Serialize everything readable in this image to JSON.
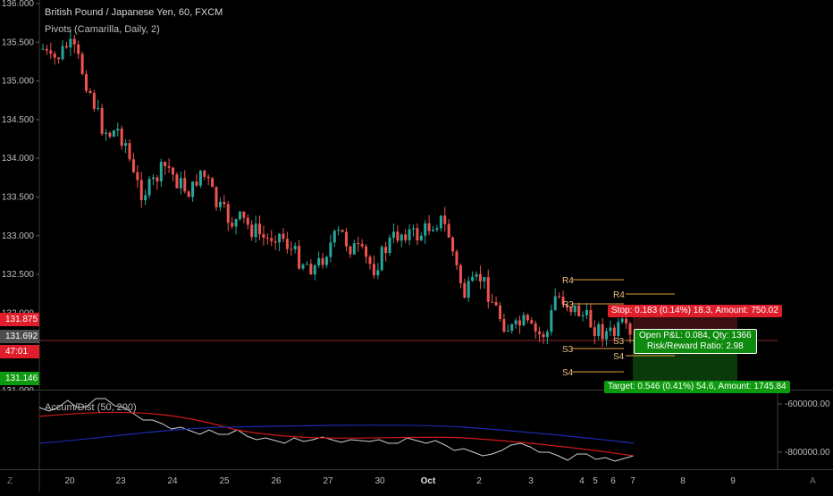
{
  "header": {
    "title": "British Pound / Japanese Yen, 60, FXCM",
    "subtitle": "Pivots (Camarilla, Daily, 2)"
  },
  "indicator": {
    "title": "Accum/Dist (50, 200)",
    "axis_labels": [
      "-600000.00",
      "-800000.00"
    ]
  },
  "price_axis": {
    "labels": [
      "136.000",
      "135.500",
      "135.000",
      "134.500",
      "134.000",
      "133.500",
      "133.000",
      "132.500",
      "132.000",
      "131.500",
      "131.000"
    ],
    "stop_price": "131.875",
    "current_price": "131.692",
    "countdown": "47:01",
    "target_price": "131.146",
    "colors": {
      "stop": "#e01e2b",
      "current": "#4d4d4d",
      "countdown": "#e01e2b",
      "target": "#0e9a0e"
    }
  },
  "date_axis": {
    "labels": [
      "20",
      "23",
      "24",
      "25",
      "26",
      "27",
      "30",
      "Oct",
      "2",
      "3",
      "4",
      "5",
      "6",
      "7",
      "8",
      "9"
    ]
  },
  "pivots": {
    "day1": [
      "R4",
      "R3",
      "S3",
      "S4"
    ],
    "day2": [
      "R4",
      "R3",
      "S3",
      "S4"
    ]
  },
  "position": {
    "stop_text": "Stop: 0.183 (0.14%) 18.3, Amount: 750.02",
    "pnl_text": "Open P&L: 0.084, Qty: 1366",
    "rr_text": "Risk/Reward Ratio: 2.98",
    "target_text": "Target: 0.546 (0.41%) 54.6, Amount: 1745.84"
  },
  "colors": {
    "up": "#26a69a",
    "down": "#ef5350",
    "pivot": "#e0a040",
    "stop_zone": "#3a0f12",
    "target_zone": "#0a3a0a",
    "ad_line": "#d0d0d0",
    "ma_fast": "#d01818",
    "ma_slow": "#1a2aa8"
  },
  "corner_icons": {
    "left": "Z",
    "right": "A"
  }
}
